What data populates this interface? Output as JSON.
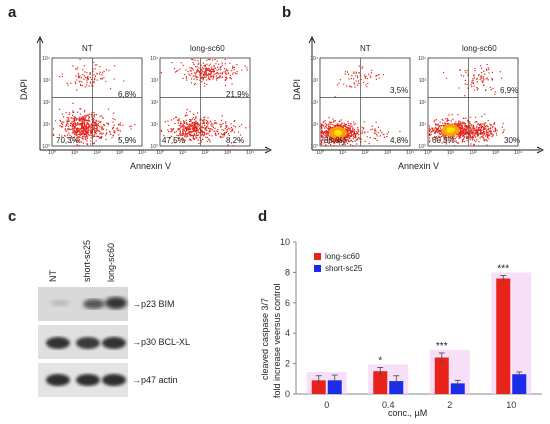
{
  "panels": {
    "a": "a",
    "b": "b",
    "c": "c",
    "d": "d"
  },
  "flow": {
    "a": {
      "xlabel": "Annexin V",
      "ylabel": "DAPI",
      "plots": [
        {
          "title": "NT",
          "q_ur": "6,8%",
          "q_ll": "70,3%",
          "q_lr": "5,9%"
        },
        {
          "title": "long-sc60",
          "q_ur": "21,9%",
          "q_ll": "47,5%",
          "q_lr": "8,2%"
        }
      ]
    },
    "b": {
      "xlabel": "Annexin V",
      "ylabel": "DAPI",
      "plots": [
        {
          "title": "NT",
          "q_ur": "3,5%",
          "q_ll": "88,3%",
          "q_lr": "4,8%"
        },
        {
          "title": "long-sc60",
          "q_ur": "6,9%",
          "q_ll": "60,5%",
          "q_lr": "30%"
        }
      ]
    },
    "ticks_x": [
      "10⁰",
      "10¹",
      "10²",
      "10³",
      "10⁴"
    ],
    "ticks_y": [
      "10⁴",
      "10³",
      "10²",
      "10¹",
      "10⁰"
    ]
  },
  "blot": {
    "lanes": [
      "NT",
      "short-sc25",
      "long-sc60"
    ],
    "bands": [
      "→p23 BIM",
      "→p30 BCL-XL",
      "→p47 actin"
    ]
  },
  "chart_data": {
    "type": "bar",
    "categories": [
      "0",
      "0.4",
      "2",
      "10"
    ],
    "series": [
      {
        "name": "long-sc60",
        "values": [
          0.9,
          1.5,
          2.4,
          7.6
        ],
        "errors": [
          0.3,
          0.25,
          0.3,
          0.2
        ],
        "color": "#e8231b"
      },
      {
        "name": "short-sc25",
        "values": [
          0.9,
          0.85,
          0.7,
          1.3
        ],
        "errors": [
          0.35,
          0.35,
          0.2,
          0.15
        ],
        "color": "#1a2bea"
      }
    ],
    "significance": [
      "",
      "*",
      "***",
      "***"
    ],
    "xlabel": "conc., µM",
    "ylabel_line1": "cleaved caspase 3/7",
    "ylabel_line2": "fold increase veersus control",
    "ylim": [
      0,
      10
    ],
    "yticks": [
      "0",
      "2",
      "4",
      "6",
      "8",
      "10"
    ],
    "legend_position": "top-left"
  }
}
